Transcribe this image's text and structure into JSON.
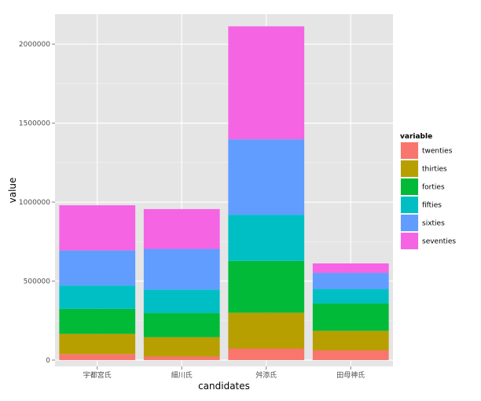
{
  "chart_data": {
    "type": "bar",
    "stacked": true,
    "categories": [
      "宇都宮氏",
      "細川氏",
      "舛添氏",
      "田母神氏"
    ],
    "series": [
      {
        "name": "twenties",
        "color": "#F8766D",
        "values": [
          38000,
          22000,
          72000,
          62000
        ]
      },
      {
        "name": "thirties",
        "color": "#B79F00",
        "values": [
          128000,
          123000,
          228000,
          123000
        ]
      },
      {
        "name": "forties",
        "color": "#00BA38",
        "values": [
          158000,
          153000,
          328000,
          173000
        ]
      },
      {
        "name": "fifties",
        "color": "#00BFC4",
        "values": [
          148000,
          148000,
          292000,
          92000
        ]
      },
      {
        "name": "sixties",
        "color": "#619CFF",
        "values": [
          223000,
          258000,
          478000,
          102000
        ]
      },
      {
        "name": "seventies",
        "color": "#F564E3",
        "values": [
          285000,
          252000,
          715000,
          60000
        ]
      }
    ],
    "xlabel": "candidates",
    "ylabel": "value",
    "ylim": [
      -40000,
      2190000
    ],
    "yticks": [
      0,
      500000,
      1000000,
      1500000,
      2000000
    ],
    "ytick_labels": [
      "0",
      "500000",
      "1000000",
      "1500000",
      "2000000"
    ],
    "legend": {
      "title": "variable",
      "position": "right"
    },
    "grid": true,
    "panel_background": "#E5E5E5",
    "grid_color": "#FFFFFF"
  }
}
